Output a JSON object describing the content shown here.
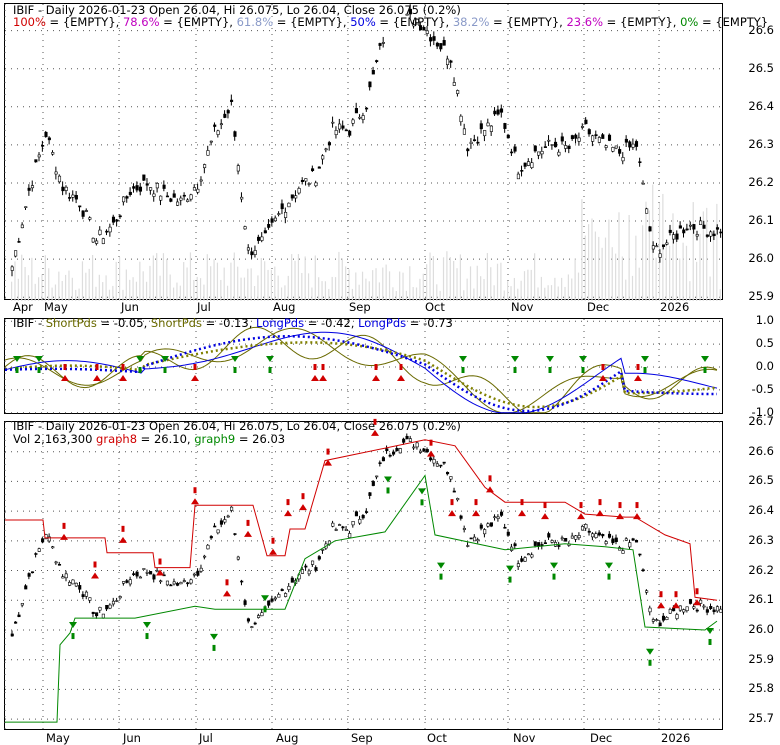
{
  "chart_data": [
    {
      "type": "candlestick",
      "title": "IBIF - Daily 2026-01-23 Open 26.04, Hi 26.075, Lo 26.04, Close 26.075 (0.2%)",
      "fib_legend": [
        {
          "label": "100%",
          "value": "{EMPTY}",
          "color": "#d00000"
        },
        {
          "label": "78.6%",
          "value": "{EMPTY}",
          "color": "#c000c0"
        },
        {
          "label": "61.8%",
          "value": "{EMPTY}",
          "color": "#8a9ac8"
        },
        {
          "label": "50%",
          "value": "{EMPTY}",
          "color": "#0000e0"
        },
        {
          "label": "38.2%",
          "value": "{EMPTY}",
          "color": "#8a9ac8"
        },
        {
          "label": "23.6%",
          "value": "{EMPTY}",
          "color": "#c000c0"
        },
        {
          "label": "0%",
          "value": "{EMPTY}",
          "color": "#008800"
        }
      ],
      "y_ticks": [
        "26.6",
        "26.5",
        "26.4",
        "26.3",
        "26.2",
        "26.1",
        "26.0",
        "25.9"
      ],
      "ylim": [
        25.89,
        26.67
      ],
      "x_ticks": [
        "Apr",
        "May",
        "Jun",
        "Jul",
        "Aug",
        "Sep",
        "Oct",
        "Nov",
        "Dec",
        "2026"
      ],
      "close_series": [
        [
          "2025-03-31",
          25.98
        ],
        [
          "2025-04-07",
          26.18
        ],
        [
          "2025-04-14",
          26.33
        ],
        [
          "2025-04-21",
          26.19
        ],
        [
          "2025-04-28",
          26.15
        ],
        [
          "2025-05-05",
          26.05
        ],
        [
          "2025-05-12",
          26.09
        ],
        [
          "2025-05-19",
          26.18
        ],
        [
          "2025-05-26",
          26.2
        ],
        [
          "2025-06-02",
          26.17
        ],
        [
          "2025-06-09",
          26.15
        ],
        [
          "2025-06-16",
          26.2
        ],
        [
          "2025-06-23",
          26.33
        ],
        [
          "2025-06-30",
          26.4
        ],
        [
          "2025-07-07",
          26.02
        ],
        [
          "2025-07-14",
          26.05
        ],
        [
          "2025-07-21",
          26.13
        ],
        [
          "2025-07-28",
          26.19
        ],
        [
          "2025-08-04",
          26.22
        ],
        [
          "2025-08-11",
          26.34
        ],
        [
          "2025-08-18",
          26.34
        ],
        [
          "2025-08-25",
          26.41
        ],
        [
          "2025-09-01",
          26.58
        ],
        [
          "2025-09-08",
          26.63
        ],
        [
          "2025-09-15",
          26.63
        ],
        [
          "2025-09-22",
          26.58
        ],
        [
          "2025-09-29",
          26.53
        ],
        [
          "2025-10-06",
          26.3
        ],
        [
          "2025-10-13",
          26.34
        ],
        [
          "2025-10-20",
          26.38
        ],
        [
          "2025-10-27",
          26.24
        ],
        [
          "2025-11-03",
          26.28
        ],
        [
          "2025-11-10",
          26.3
        ],
        [
          "2025-11-17",
          26.29
        ],
        [
          "2025-11-24",
          26.34
        ],
        [
          "2025-12-01",
          26.3
        ],
        [
          "2025-12-08",
          26.28
        ],
        [
          "2025-12-15",
          26.3
        ],
        [
          "2025-12-22",
          26.02
        ],
        [
          "2025-12-29",
          26.05
        ],
        [
          "2026-01-05",
          26.09
        ],
        [
          "2026-01-12",
          26.08
        ],
        [
          "2026-01-19",
          26.07
        ]
      ],
      "volume_bars": true
    },
    {
      "type": "line",
      "title": "IBIF - ShortPds = -0.05, ShortPds = -0.13, LongPds = -0.42, LongPds = -0.73",
      "series_labels": [
        {
          "label": "ShortPds",
          "value": "-0.05",
          "color": "#6a6a00"
        },
        {
          "label": "ShortPds",
          "value": "-0.13",
          "color": "#6a6a00"
        },
        {
          "label": "LongPds",
          "value": "-0.42",
          "color": "#0000e0"
        },
        {
          "label": "LongPds",
          "value": "-0.73",
          "color": "#0000e0"
        }
      ],
      "y_ticks": [
        "1.0",
        "0.5",
        "0.0",
        "-0.5",
        "-1.0"
      ],
      "ylim": [
        -1.05,
        1.05
      ]
    },
    {
      "type": "candlestick",
      "title": "IBIF - Daily 2026-01-23 Open 26.04, Hi 26.075, Lo 26.04, Close 26.075 (0.2%)",
      "vol_label": "Vol 2,163,300",
      "graph8": {
        "label": "graph8",
        "value": "26.10",
        "color": "#d00000"
      },
      "graph9": {
        "label": "graph9",
        "value": "26.03",
        "color": "#008800"
      },
      "y_ticks": [
        "26.7",
        "26.6",
        "26.5",
        "26.4",
        "26.3",
        "26.2",
        "26.1",
        "26.0",
        "25.9",
        "25.8",
        "25.7"
      ],
      "ylim": [
        25.66,
        26.7
      ],
      "x_ticks": [
        "May",
        "Jun",
        "Jul",
        "Aug",
        "Sep",
        "Oct",
        "Nov",
        "Dec",
        "2026"
      ]
    }
  ]
}
